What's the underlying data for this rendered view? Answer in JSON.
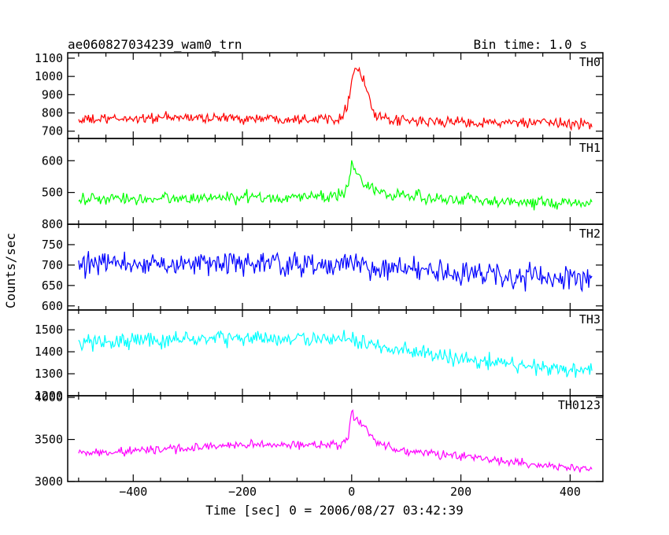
{
  "header": {
    "title": "ae060827034239_wam0_trn",
    "bin_time": "Bin time: 1.0 s"
  },
  "axes": {
    "ylabel": "Counts/sec",
    "xlabel": "Time [sec] 0 = 2006/08/27 03:42:39"
  },
  "chart_data": {
    "type": "line",
    "xlabel": "Time [sec] 0 = 2006/08/27 03:42:39",
    "ylabel": "Counts/sec",
    "title": "ae060827034239_wam0_trn",
    "bin_time_s": 1.0,
    "xlim": [
      -520,
      460
    ],
    "x_ticks": [
      -400,
      -200,
      0,
      200,
      400
    ],
    "x_tick_labels": [
      "−400",
      "−200",
      "0",
      "200",
      "400"
    ],
    "x_sample_step": 2,
    "grid": false,
    "panels": [
      {
        "name": "TH0",
        "color": "#ff0000",
        "ylim": [
          660,
          1130
        ],
        "yticks": [
          700,
          800,
          900,
          1000,
          1100
        ],
        "x": [
          -500,
          -400,
          -300,
          -200,
          -100,
          -40,
          -20,
          -8,
          0,
          4,
          10,
          16,
          22,
          30,
          40,
          50,
          70,
          100,
          200,
          300,
          440
        ],
        "y": [
          760,
          770,
          775,
          770,
          770,
          770,
          775,
          840,
          980,
          1020,
          1050,
          1020,
          980,
          900,
          800,
          770,
          760,
          755,
          750,
          745,
          740
        ],
        "noise": 42
      },
      {
        "name": "TH1",
        "color": "#00ff00",
        "ylim": [
          400,
          670
        ],
        "yticks": [
          500,
          600
        ],
        "x": [
          -500,
          -300,
          -100,
          -20,
          -6,
          0,
          4,
          12,
          25,
          50,
          100,
          200,
          300,
          440
        ],
        "y": [
          478,
          482,
          485,
          490,
          520,
          595,
          575,
          560,
          530,
          500,
          487,
          480,
          470,
          465
        ],
        "noise": 28
      },
      {
        "name": "TH2",
        "color": "#0000ff",
        "ylim": [
          590,
          800
        ],
        "yticks": [
          600,
          650,
          700,
          750,
          800
        ],
        "x": [
          -500,
          -300,
          -100,
          0,
          100,
          200,
          300,
          440
        ],
        "y": [
          700,
          705,
          702,
          700,
          690,
          680,
          672,
          665
        ],
        "noise": 42
      },
      {
        "name": "TH3",
        "color": "#00ffff",
        "ylim": [
          1200,
          1590
        ],
        "yticks": [
          1200,
          1300,
          1400,
          1500
        ],
        "x": [
          -500,
          -300,
          -100,
          0,
          100,
          200,
          300,
          440
        ],
        "y": [
          1440,
          1460,
          1460,
          1450,
          1400,
          1370,
          1340,
          1320
        ],
        "noise": 55
      },
      {
        "name": "TH0123",
        "color": "#ff00ff",
        "ylim": [
          3000,
          4020
        ],
        "yticks": [
          3000,
          3500,
          4000
        ],
        "x": [
          -500,
          -300,
          -200,
          -100,
          -20,
          -6,
          0,
          4,
          12,
          25,
          45,
          70,
          100,
          200,
          300,
          440
        ],
        "y": [
          3330,
          3400,
          3440,
          3430,
          3440,
          3520,
          3850,
          3780,
          3720,
          3660,
          3480,
          3400,
          3360,
          3300,
          3220,
          3150
        ],
        "noise": 75
      }
    ]
  }
}
